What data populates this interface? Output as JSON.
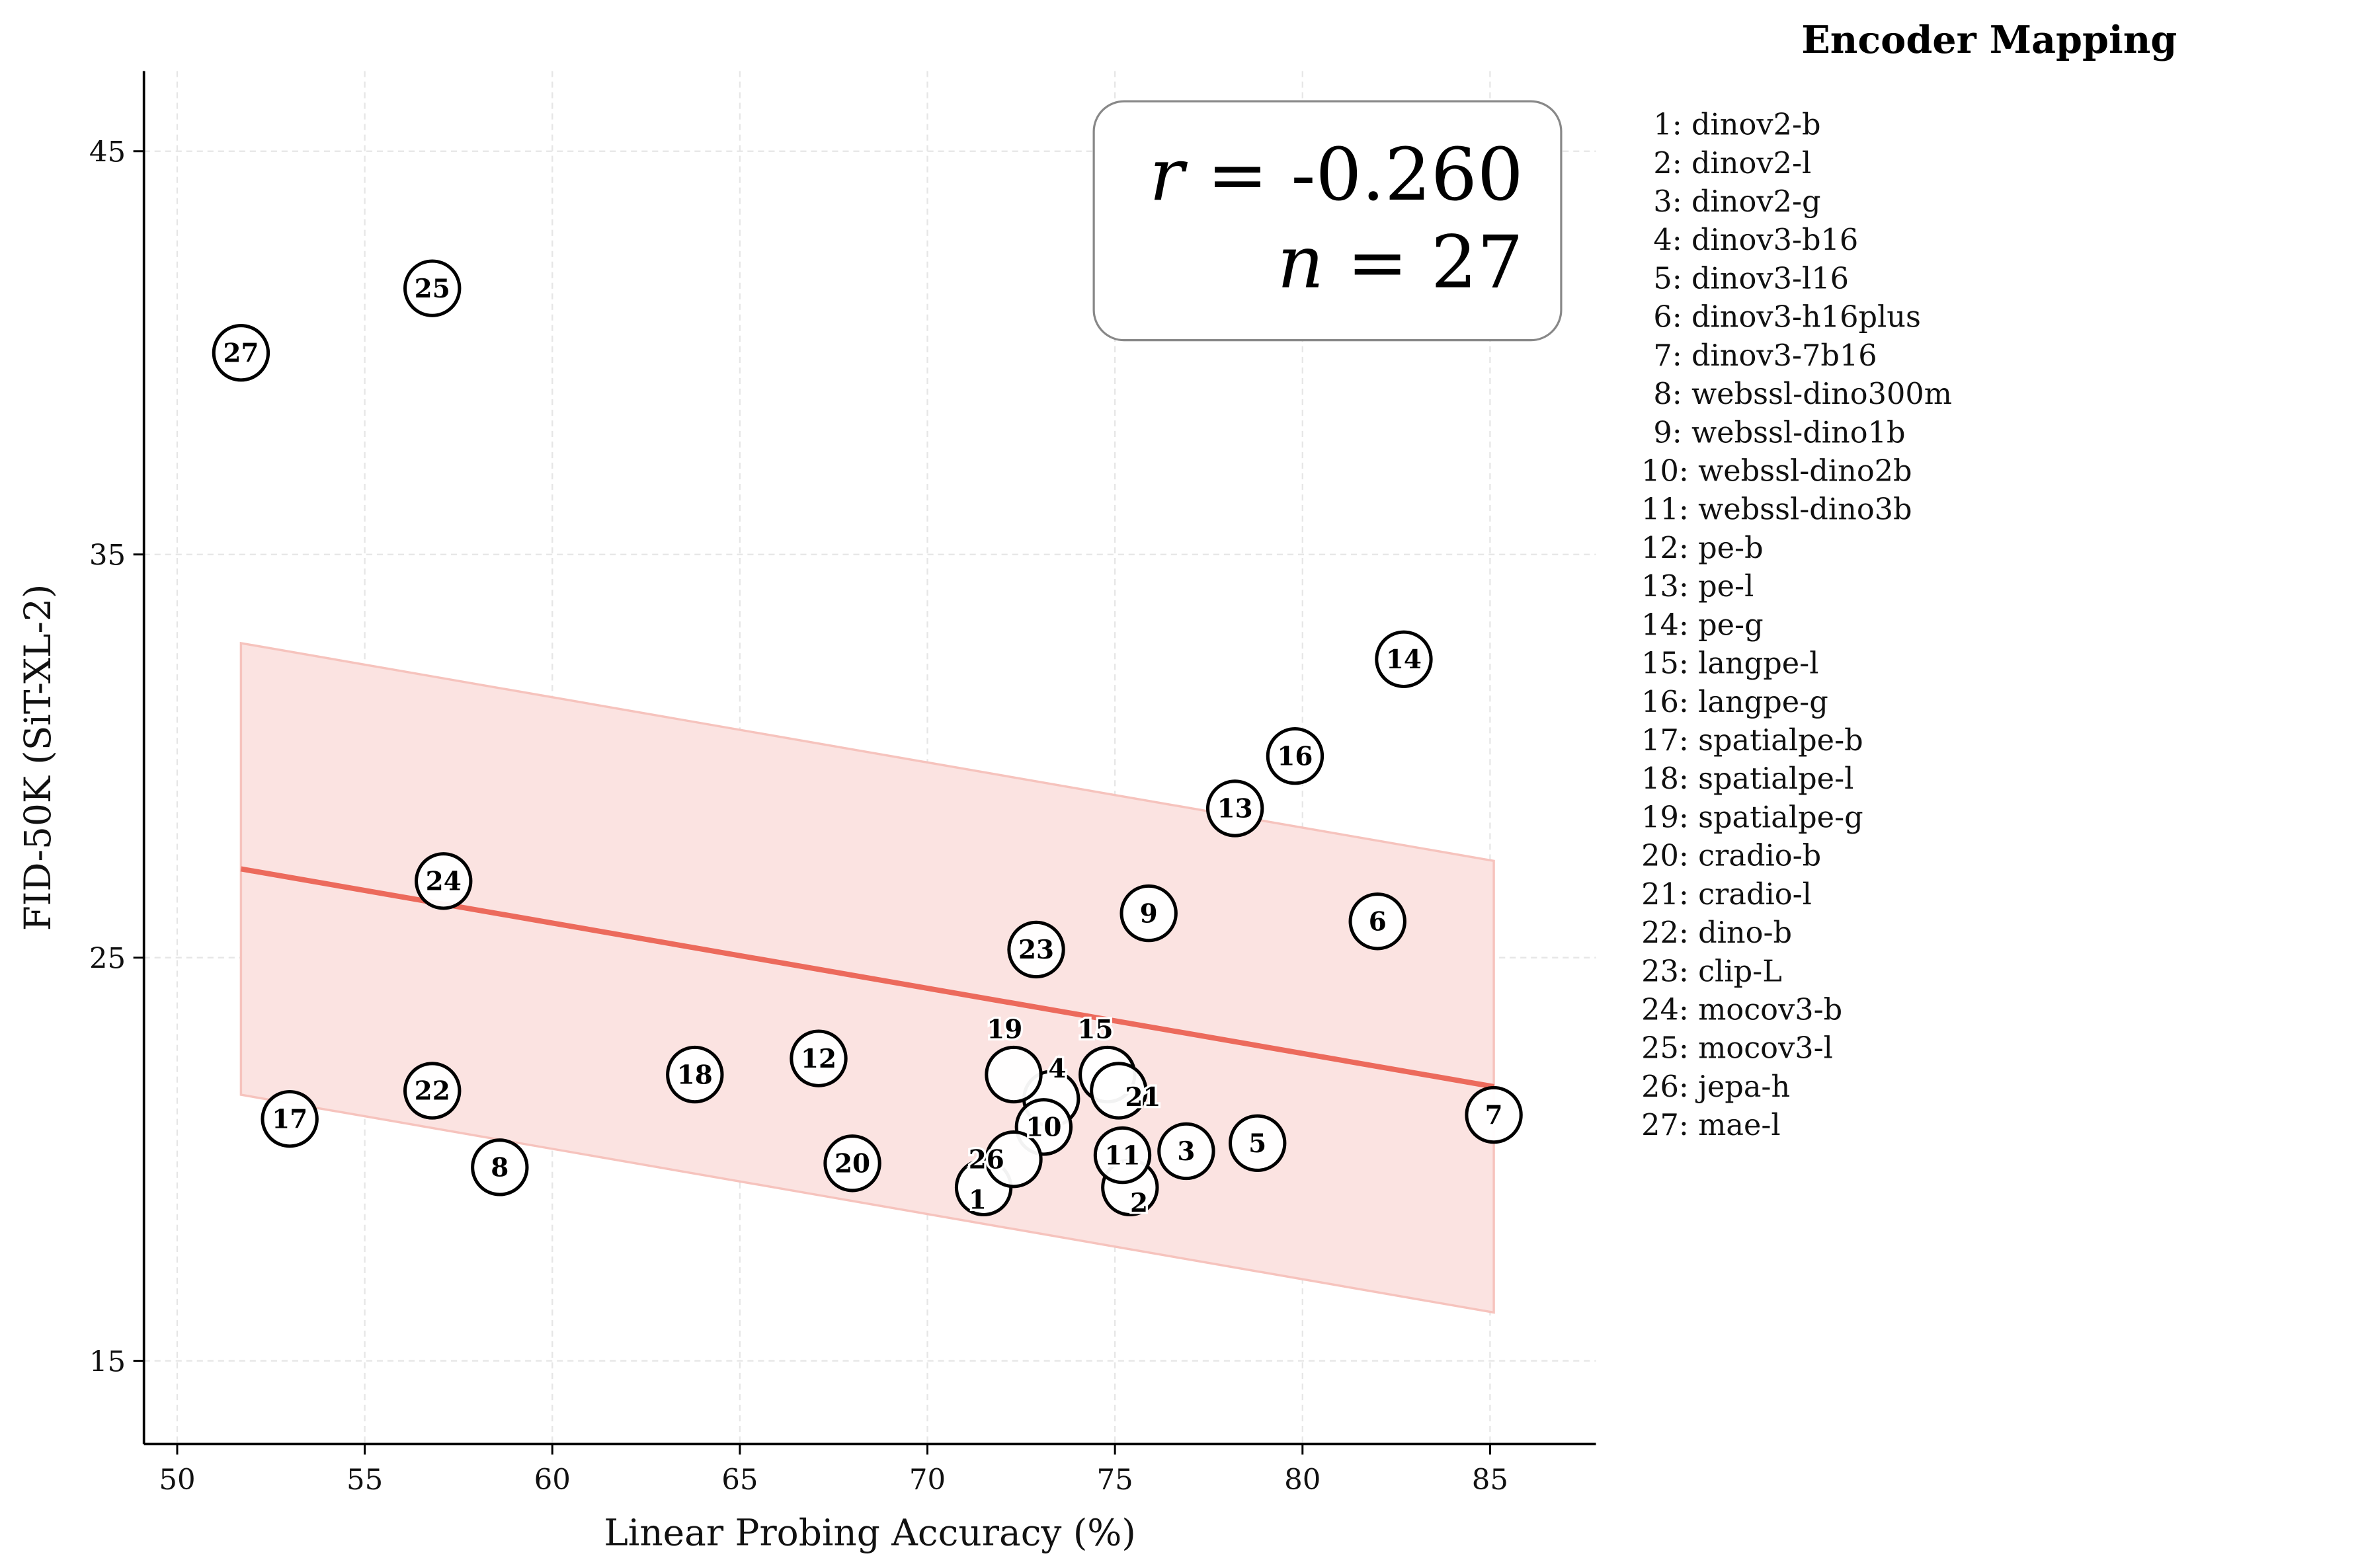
{
  "chart_data": {
    "type": "scatter",
    "xlabel": "Linear Probing Accuracy (%)",
    "ylabel": "FID-50K (SiT-XL-2)",
    "xlim": [
      49.1,
      87.8
    ],
    "ylim": [
      12.9,
      47.0
    ],
    "xticks": [
      50,
      55,
      60,
      65,
      70,
      75,
      80,
      85
    ],
    "yticks": [
      15,
      25,
      35,
      45
    ],
    "grid": true,
    "points": [
      {
        "id": "1",
        "x": 71.5,
        "y": 19.3
      },
      {
        "id": "2",
        "x": 75.4,
        "y": 19.3
      },
      {
        "id": "3",
        "x": 76.9,
        "y": 20.2
      },
      {
        "id": "4",
        "x": 73.3,
        "y": 21.5
      },
      {
        "id": "5",
        "x": 78.8,
        "y": 20.4
      },
      {
        "id": "6",
        "x": 82.0,
        "y": 25.9
      },
      {
        "id": "7",
        "x": 85.1,
        "y": 21.1
      },
      {
        "id": "8",
        "x": 58.6,
        "y": 19.8
      },
      {
        "id": "9",
        "x": 75.9,
        "y": 26.1
      },
      {
        "id": "10",
        "x": 73.1,
        "y": 20.8
      },
      {
        "id": "11",
        "x": 75.2,
        "y": 20.1
      },
      {
        "id": "12",
        "x": 67.1,
        "y": 22.5
      },
      {
        "id": "13",
        "x": 78.2,
        "y": 28.7
      },
      {
        "id": "14",
        "x": 82.7,
        "y": 32.4
      },
      {
        "id": "15",
        "x": 74.8,
        "y": 22.1
      },
      {
        "id": "16",
        "x": 79.8,
        "y": 30.0
      },
      {
        "id": "17",
        "x": 53.0,
        "y": 21.0
      },
      {
        "id": "18",
        "x": 63.8,
        "y": 22.1
      },
      {
        "id": "19",
        "x": 72.3,
        "y": 22.1
      },
      {
        "id": "20",
        "x": 68.0,
        "y": 19.9
      },
      {
        "id": "21",
        "x": 75.1,
        "y": 21.7
      },
      {
        "id": "22",
        "x": 56.8,
        "y": 21.7
      },
      {
        "id": "23",
        "x": 72.9,
        "y": 25.2
      },
      {
        "id": "24",
        "x": 57.1,
        "y": 26.9
      },
      {
        "id": "25",
        "x": 56.8,
        "y": 41.6
      },
      {
        "id": "26",
        "x": 72.3,
        "y": 20.0
      },
      {
        "id": "27",
        "x": 51.7,
        "y": 40.0
      }
    ],
    "regression": {
      "x": [
        51.7,
        85.1
      ],
      "y": [
        27.2,
        21.8
      ],
      "band_upper": [
        32.8,
        27.4
      ],
      "band_lower": [
        21.6,
        16.2
      ],
      "line_color": "#ec6a5c",
      "band_color": "#fbe3e1"
    },
    "annotation": {
      "r_label": "r",
      "r_value": "= -0.260",
      "n_label": "n",
      "n_value": "= 27"
    },
    "legend": {
      "title": "Encoder Mapping",
      "placement": "right-outside",
      "items": [
        "1: dinov2-b",
        "2: dinov2-l",
        "3: dinov2-g",
        "4: dinov3-b16",
        "5: dinov3-l16",
        "6: dinov3-h16plus",
        "7: dinov3-7b16",
        "8: webssl-dino300m",
        "9: webssl-dino1b",
        "10: webssl-dino2b",
        "11: webssl-dino3b",
        "12: pe-b",
        "13: pe-l",
        "14: pe-g",
        "15: langpe-l",
        "16: langpe-g",
        "17: spatialpe-b",
        "18: spatialpe-l",
        "19: spatialpe-g",
        "20: cradio-b",
        "21: cradio-l",
        "22: dino-b",
        "23: clip-L",
        "24: mocov3-b",
        "25: mocov3-l",
        "26: jepa-h",
        "27: mae-l"
      ]
    }
  }
}
